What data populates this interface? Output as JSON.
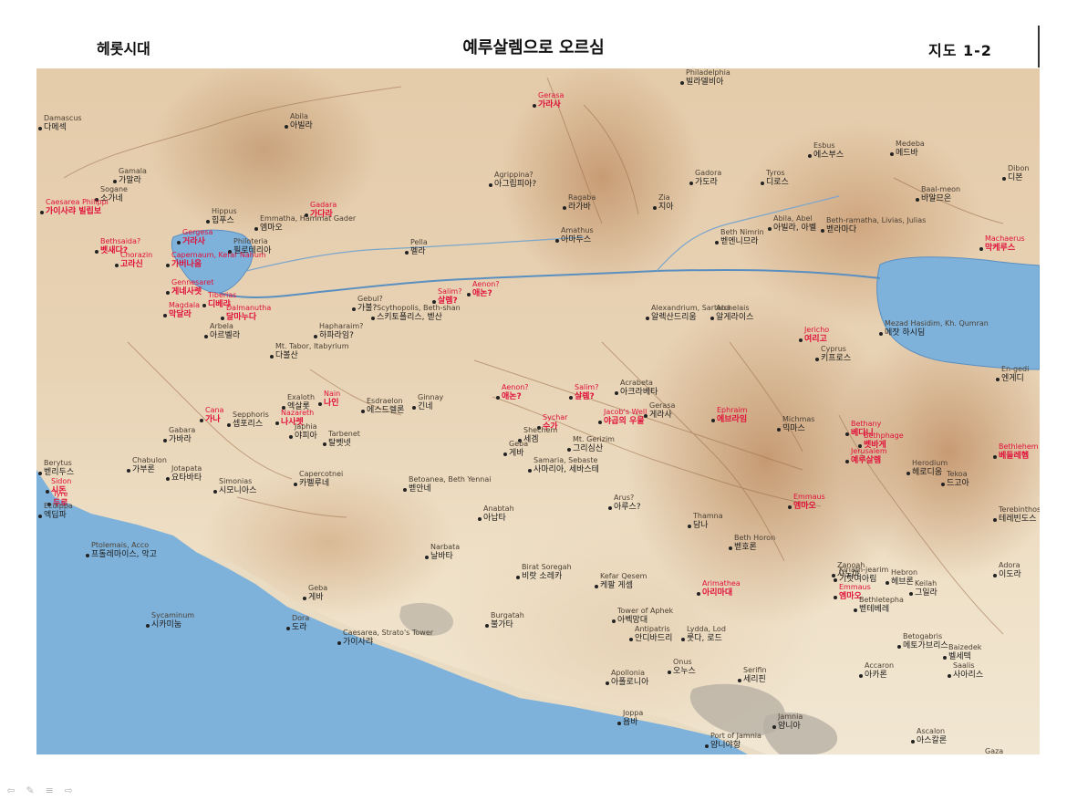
{
  "header": {
    "left": "헤롯시대",
    "title": "예루살렘으로 오르심",
    "right": "지도 1-2"
  },
  "nav_icons": [
    "prev-arrow-icon",
    "pen-icon",
    "menu-icon",
    "next-arrow-icon"
  ],
  "colors": {
    "water": "#7fb2da",
    "place_label": "#1a1a1a",
    "highlight_label": "#e0103a",
    "river": "#5a8fc0"
  },
  "places": [
    {
      "ko": "다메섹",
      "en": "Damascus",
      "red": false
    },
    {
      "ko": "아빌라",
      "en": "Abila",
      "red": false
    },
    {
      "ko": "빌라델비아",
      "en": "Philadelphia",
      "red": false
    },
    {
      "ko": "가라사",
      "en": "Gerasa",
      "red": true
    },
    {
      "ko": "가말라",
      "en": "Gamala",
      "red": false
    },
    {
      "ko": "소가네",
      "en": "Sogane",
      "red": false
    },
    {
      "ko": "가이사랴 빌립보",
      "en": "Caesarea Philippi",
      "red": true
    },
    {
      "ko": "힙푸스",
      "en": "Hippus",
      "red": false
    },
    {
      "ko": "가다라",
      "en": "Gadara",
      "red": true
    },
    {
      "ko": "아그립피아?",
      "en": "Agrippina?",
      "red": false
    },
    {
      "ko": "라가바",
      "en": "Ragaba",
      "red": false
    },
    {
      "ko": "지아",
      "en": "Zia",
      "red": false
    },
    {
      "ko": "가도라",
      "en": "Gadora",
      "red": false
    },
    {
      "ko": "디로스",
      "en": "Tyros",
      "red": false
    },
    {
      "ko": "에스부스",
      "en": "Esbus",
      "red": false
    },
    {
      "ko": "메드바",
      "en": "Medeba",
      "red": false
    },
    {
      "ko": "디본",
      "en": "Dibon",
      "red": false
    },
    {
      "ko": "바알므온",
      "en": "Baal-meon",
      "red": false
    },
    {
      "ko": "벳새다?",
      "en": "Bethsaida?",
      "red": true
    },
    {
      "ko": "거라사",
      "en": "Gergesa",
      "red": true
    },
    {
      "ko": "가버나움",
      "en": "Capernaum, Kefar Nahum",
      "red": true
    },
    {
      "ko": "고라신",
      "en": "Chorazin",
      "red": true
    },
    {
      "ko": "엠마오",
      "en": "Emmatha, Hammat Gader",
      "red": false
    },
    {
      "ko": "아마두스",
      "en": "Amathus",
      "red": false
    },
    {
      "ko": "벧엔니므라",
      "en": "Beth Nimrin",
      "red": false
    },
    {
      "ko": "아빌라, 아벨",
      "en": "Abila, Abel",
      "red": false
    },
    {
      "ko": "벧라마다",
      "en": "Beth-ramatha, Livias, Julias",
      "red": false
    },
    {
      "ko": "막케루스",
      "en": "Machaerus",
      "red": true
    },
    {
      "ko": "게네사렛",
      "en": "Gennesaret",
      "red": true
    },
    {
      "ko": "디베랴",
      "en": "Tiberias",
      "red": true
    },
    {
      "ko": "막달라",
      "en": "Magdala",
      "red": true
    },
    {
      "ko": "달마누다",
      "en": "Dalmanutha",
      "red": true
    },
    {
      "ko": "필로테리아",
      "en": "Philoteria",
      "red": false
    },
    {
      "ko": "펠라",
      "en": "Pella",
      "red": false
    },
    {
      "ko": "살렘?",
      "en": "Salim?",
      "red": true
    },
    {
      "ko": "애논?",
      "en": "Aenon?",
      "red": true
    },
    {
      "ko": "알렉산드리움",
      "en": "Alexandrium, Sartaba",
      "red": false
    },
    {
      "ko": "알게라이스",
      "en": "Archelais",
      "red": false
    },
    {
      "ko": "여리고",
      "en": "Jericho",
      "red": true
    },
    {
      "ko": "키프로스",
      "en": "Cyprus",
      "red": false
    },
    {
      "ko": "메잣 하시딤",
      "en": "Mezad Hasidim, Kh. Qumran",
      "red": false
    },
    {
      "ko": "엔게디",
      "en": "En-gedi",
      "red": false
    },
    {
      "ko": "스키토폴리스, 벧산",
      "en": "Scythopolis, Beth-shan",
      "red": false
    },
    {
      "ko": "가불?",
      "en": "Gebul?",
      "red": false
    },
    {
      "ko": "하파라임?",
      "en": "Hapharaim?",
      "red": false
    },
    {
      "ko": "아르벨라",
      "en": "Arbela",
      "red": false
    },
    {
      "ko": "다볼산",
      "en": "Mt. Tabor, Itabyrium",
      "red": false
    },
    {
      "ko": "나인",
      "en": "Nain",
      "red": true
    },
    {
      "ko": "엑살롯",
      "en": "Exaloth",
      "red": false
    },
    {
      "ko": "에스드렐론",
      "en": "Esdraelon",
      "red": false
    },
    {
      "ko": "긴네",
      "en": "Ginnay",
      "red": false
    },
    {
      "ko": "애논?",
      "en": "Aenon?",
      "red": true
    },
    {
      "ko": "살렘?",
      "en": "Salim?",
      "red": true
    },
    {
      "ko": "야곱의 우물",
      "en": "Jacob's Well",
      "red": true
    },
    {
      "ko": "수가",
      "en": "Sychar",
      "red": true
    },
    {
      "ko": "세겜",
      "en": "Shechem",
      "red": false
    },
    {
      "ko": "그리심산",
      "en": "Mt. Gerizim",
      "red": false
    },
    {
      "ko": "사마리아, 세바스테",
      "en": "Samaria, Sebaste",
      "red": false
    },
    {
      "ko": "게바",
      "en": "Geba",
      "red": false
    },
    {
      "ko": "아크라베타",
      "en": "Acrabeta",
      "red": false
    },
    {
      "ko": "게라사",
      "en": "Gerasa",
      "red": false
    },
    {
      "ko": "에브라임",
      "en": "Ephraim",
      "red": true
    },
    {
      "ko": "믹마스",
      "en": "Michmas",
      "red": false
    },
    {
      "ko": "베다니",
      "en": "Bethany",
      "red": true
    },
    {
      "ko": "벳바게",
      "en": "Bethphage",
      "red": true
    },
    {
      "ko": "예루살렘",
      "en": "Jerusalem",
      "red": true
    },
    {
      "ko": "베들레헴",
      "en": "Bethlehem",
      "red": true
    },
    {
      "ko": "헤로디움",
      "en": "Herodium",
      "red": false
    },
    {
      "ko": "드고아",
      "en": "Tekoa",
      "red": false
    },
    {
      "ko": "나사렛",
      "en": "Nazareth",
      "red": true
    },
    {
      "ko": "가나",
      "en": "Cana",
      "red": true
    },
    {
      "ko": "셉포리스",
      "en": "Sepphoris",
      "red": false
    },
    {
      "ko": "야피아",
      "en": "Japhia",
      "red": false
    },
    {
      "ko": "탈벳넷",
      "en": "Tarbenet",
      "red": false
    },
    {
      "ko": "가바라",
      "en": "Gabara",
      "red": false
    },
    {
      "ko": "요타바타",
      "en": "Jotapata",
      "red": false
    },
    {
      "ko": "가부론",
      "en": "Chabulon",
      "red": false
    },
    {
      "ko": "시모니아스",
      "en": "Simonias",
      "red": false
    },
    {
      "ko": "카펠루네",
      "en": "Capercotnei",
      "red": false
    },
    {
      "ko": "벧안네",
      "en": "Betoanea, Beth Yennai",
      "red": false
    },
    {
      "ko": "아납타",
      "en": "Anabtah",
      "red": false
    },
    {
      "ko": "아루스?",
      "en": "Arus?",
      "red": false
    },
    {
      "ko": "담나",
      "en": "Thamna",
      "red": false
    },
    {
      "ko": "벧호론",
      "en": "Beth Horon",
      "red": false
    },
    {
      "ko": "엠마오",
      "en": "Emmaus",
      "red": true
    },
    {
      "ko": "기럇여아림",
      "en": "Kiriath-jearim",
      "red": false
    },
    {
      "ko": "엠마오",
      "en": "Emmaus",
      "red": true
    },
    {
      "ko": "아리마대",
      "en": "Arimathea",
      "red": true
    },
    {
      "ko": "그일라",
      "en": "Keilah",
      "red": false
    },
    {
      "ko": "벧테베레",
      "en": "Bethletepha",
      "red": false
    },
    {
      "ko": "헤브론",
      "en": "Hebron",
      "red": false
    },
    {
      "ko": "테레빈도스",
      "en": "Terebinthos",
      "red": false
    },
    {
      "ko": "시돈",
      "en": "Sidon",
      "red": true
    },
    {
      "ko": "두로",
      "en": "Tyre",
      "red": true
    },
    {
      "ko": "벧리두스",
      "en": "Berytus",
      "red": false
    },
    {
      "ko": "엑딥파",
      "en": "Ecdippa",
      "red": false
    },
    {
      "ko": "프톨레마이스, 악고",
      "en": "Ptolemais, Acco",
      "red": false
    },
    {
      "ko": "시카미눔",
      "en": "Sycaminum",
      "red": false
    },
    {
      "ko": "게바",
      "en": "Geba",
      "red": false
    },
    {
      "ko": "도라",
      "en": "Dora",
      "red": false
    },
    {
      "ko": "가이사랴",
      "en": "Caesarea, Strato's Tower",
      "red": false
    },
    {
      "ko": "날바타",
      "en": "Narbata",
      "red": false
    },
    {
      "ko": "비랏 소레카",
      "en": "Birat Soregah",
      "red": false
    },
    {
      "ko": "케팔 게셈",
      "en": "Kefar Qesem",
      "red": false
    },
    {
      "ko": "아벡망대",
      "en": "Tower of Aphek",
      "red": false
    },
    {
      "ko": "안디바드리",
      "en": "Antipatris",
      "red": false
    },
    {
      "ko": "불가타",
      "en": "Burgatah",
      "red": false
    },
    {
      "ko": "룻다, 로드",
      "en": "Lydda, Lod",
      "red": false
    },
    {
      "ko": "오누스",
      "en": "Onus",
      "red": false
    },
    {
      "ko": "세리핀",
      "en": "Serifin",
      "red": false
    },
    {
      "ko": "아폴로니아",
      "en": "Apollonia",
      "red": false
    },
    {
      "ko": "욥바",
      "en": "Joppa",
      "red": false
    },
    {
      "ko": "얌니아",
      "en": "Jamnia",
      "red": false
    },
    {
      "ko": "얌니야항",
      "en": "Port of Jamnia",
      "red": false
    },
    {
      "ko": "아스칼론",
      "en": "Ascalon",
      "red": false
    },
    {
      "ko": "가사",
      "en": "Gaza",
      "red": false
    },
    {
      "ko": "아카론",
      "en": "Accaron",
      "red": false
    },
    {
      "ko": "메토가브리스",
      "en": "Betogabris",
      "red": false
    },
    {
      "ko": "벨세텍",
      "en": "Baizedek",
      "red": false
    },
    {
      "ko": "사아리스",
      "en": "Saalis",
      "red": false
    },
    {
      "ko": "이도라",
      "en": "Adora",
      "red": false
    },
    {
      "ko": "사노아",
      "en": "Zanoah",
      "red": false
    }
  ]
}
